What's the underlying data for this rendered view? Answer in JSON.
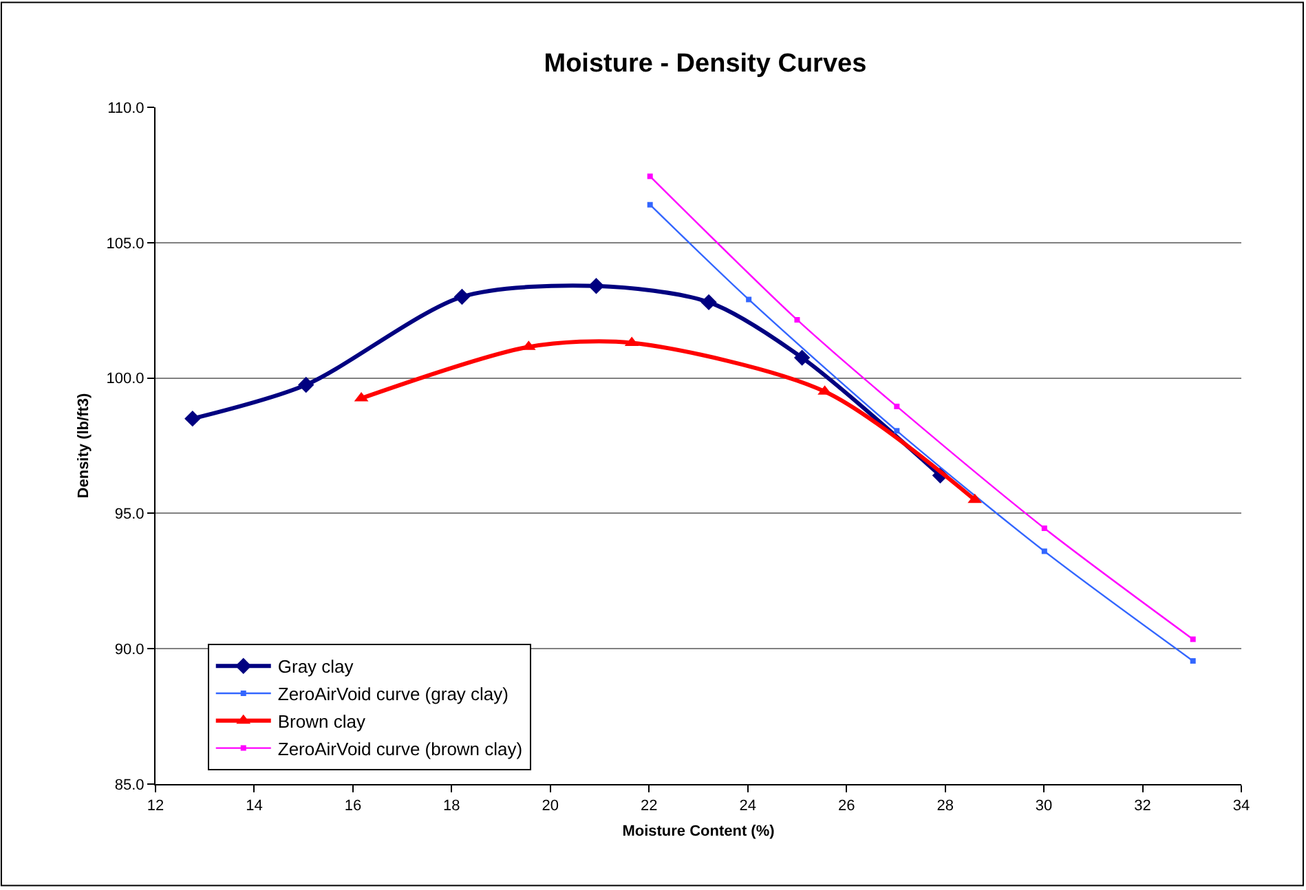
{
  "chart_data": {
    "type": "line",
    "title": "Moisture - Density Curves",
    "xlabel": "Moisture Content (%)",
    "ylabel": "Density (lb/ft3)",
    "xlim": [
      12,
      34
    ],
    "xticks": [
      12,
      14,
      16,
      18,
      20,
      22,
      24,
      26,
      28,
      30,
      32,
      34
    ],
    "ylim": [
      85,
      110
    ],
    "yticks": [
      {
        "value": 85,
        "label": "85.0"
      },
      {
        "value": 90,
        "label": "90.0"
      },
      {
        "value": 95,
        "label": "95.0"
      },
      {
        "value": 100,
        "label": "100.0"
      },
      {
        "value": 105,
        "label": "105.0"
      },
      {
        "value": 110,
        "label": "110.0"
      }
    ],
    "grid": "y",
    "legend": "bottom left",
    "line_style": "solid",
    "series": [
      {
        "name": "Gray clay",
        "color": "#000080",
        "marker": "diamond",
        "x": [
          12.75,
          15.05,
          18.21,
          20.93,
          23.21,
          25.1,
          27.9
        ],
        "values": [
          98.5,
          99.75,
          103.0,
          103.4,
          102.8,
          100.75,
          96.4
        ]
      },
      {
        "name": "ZeroAirVoid curve (gray clay)",
        "color": "#3366ff",
        "marker": "square",
        "x": [
          22.02,
          24.02,
          27.02,
          30.01,
          33.02
        ],
        "values": [
          106.4,
          102.9,
          98.05,
          93.6,
          89.55
        ]
      },
      {
        "name": "Brown clay",
        "color": "#ff0000",
        "marker": "triangle",
        "x": [
          16.17,
          19.56,
          21.65,
          25.56,
          28.6
        ],
        "values": [
          99.25,
          101.15,
          101.3,
          99.5,
          95.5
        ]
      },
      {
        "name": "ZeroAirVoid curve (brown clay)",
        "color": "#ff00ff",
        "marker": "square",
        "x": [
          22.02,
          25.0,
          27.02,
          30.01,
          33.02
        ],
        "values": [
          107.45,
          102.15,
          98.95,
          94.45,
          90.35
        ]
      }
    ]
  }
}
